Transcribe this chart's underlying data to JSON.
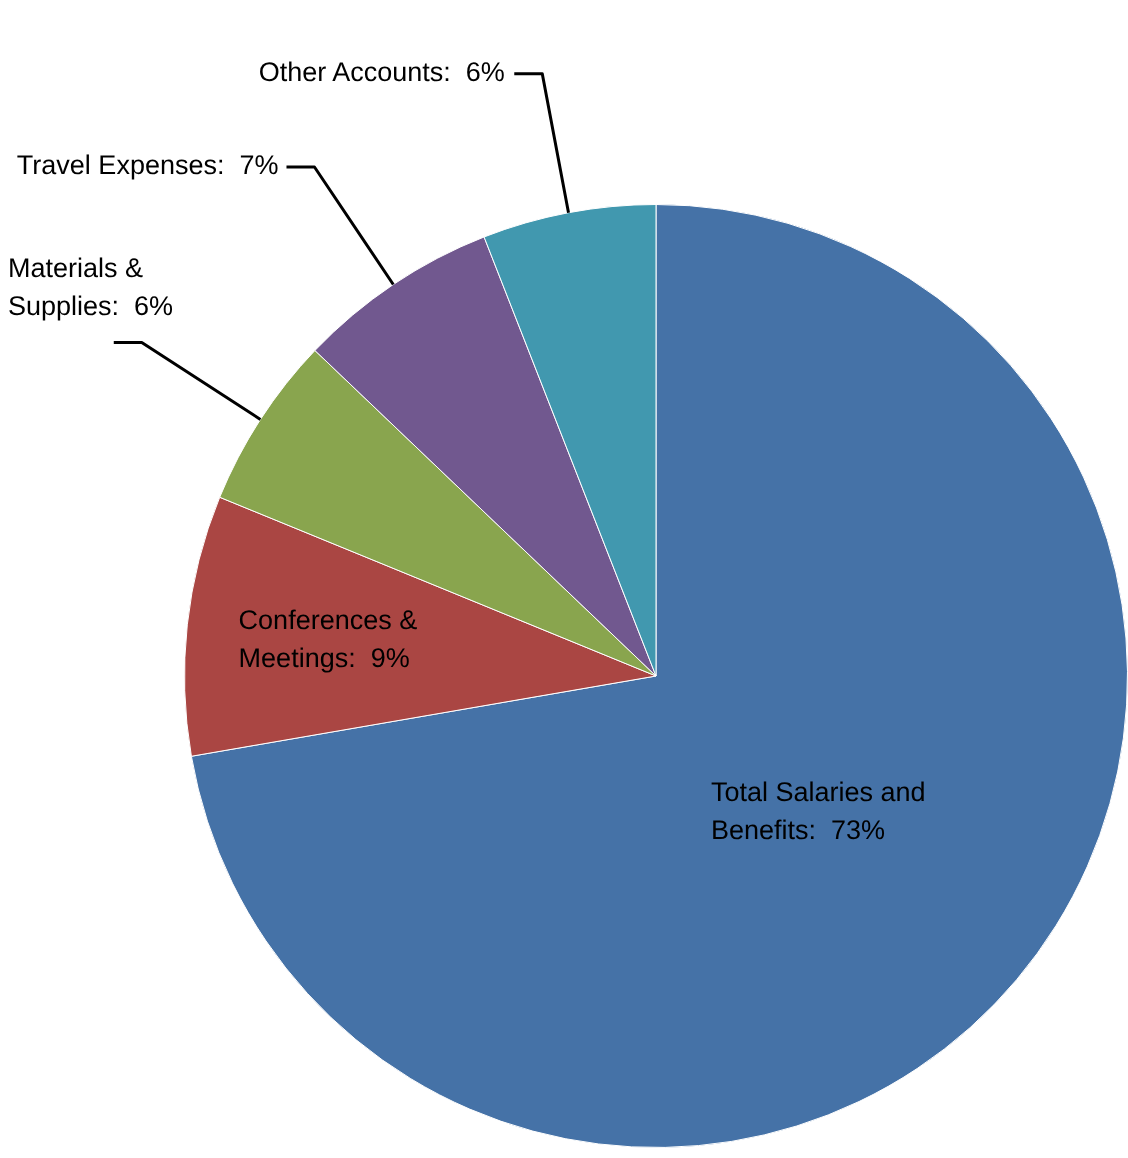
{
  "chart_data": {
    "type": "pie",
    "categories": [
      "Total Salaries and Benefits",
      "Conferences & Meetings",
      "Materials & Supplies",
      "Travel Expenses",
      "Other Accounts"
    ],
    "values": [
      73,
      9,
      6,
      7,
      6
    ],
    "value_labels": [
      "73%",
      "9%",
      "6%",
      "7%",
      "6%"
    ],
    "colors": [
      "#4572a7",
      "#aa4643",
      "#89a54e",
      "#71588f",
      "#4198af"
    ],
    "legend": false
  }
}
